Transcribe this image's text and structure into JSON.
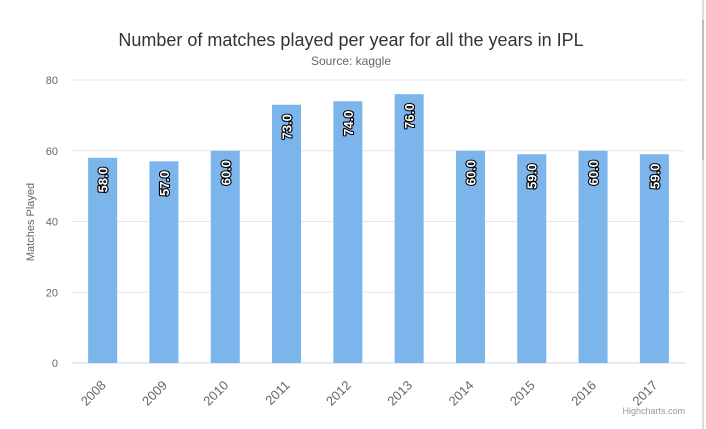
{
  "chart_data": {
    "type": "bar",
    "title": "Number of matches played per year for all the years in IPL",
    "subtitle": "Source: kaggle",
    "ylabel": "Matches Played",
    "xlabel": "",
    "categories": [
      "2008",
      "2009",
      "2010",
      "2011",
      "2012",
      "2013",
      "2014",
      "2015",
      "2016",
      "2017"
    ],
    "values": [
      58,
      57,
      60,
      73,
      74,
      76,
      60,
      59,
      60,
      59
    ],
    "data_labels": [
      "58.0",
      "57.0",
      "60.0",
      "73.0",
      "74.0",
      "76.0",
      "60.0",
      "59.0",
      "60.0",
      "59.0"
    ],
    "ylim": [
      0,
      80
    ],
    "yticks": [
      0,
      20,
      40,
      60,
      80
    ],
    "ytick_labels": [
      "0",
      "20",
      "40",
      "60",
      "80"
    ],
    "grid": true,
    "legend": "none",
    "bar_color": "#7cb5ec",
    "credit": "Highcharts.com"
  }
}
